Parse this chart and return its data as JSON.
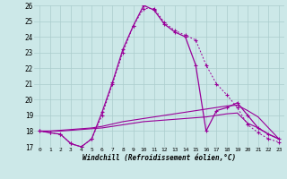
{
  "xlabel": "Windchill (Refroidissement éolien,°C)",
  "x": [
    0,
    1,
    2,
    3,
    4,
    5,
    6,
    7,
    8,
    9,
    10,
    11,
    12,
    13,
    14,
    15,
    16,
    17,
    18,
    19,
    20,
    21,
    22,
    23
  ],
  "line1": [
    18.0,
    17.9,
    17.8,
    17.2,
    17.0,
    17.5,
    19.2,
    21.1,
    23.2,
    24.7,
    26.0,
    25.7,
    24.8,
    24.3,
    24.0,
    22.2,
    18.0,
    19.3,
    19.5,
    19.8,
    19.0,
    18.2,
    17.8,
    17.5
  ],
  "line2": [
    18.0,
    17.9,
    17.8,
    17.2,
    17.0,
    17.5,
    19.0,
    21.0,
    23.0,
    24.7,
    25.8,
    25.8,
    24.9,
    24.4,
    24.1,
    23.8,
    22.2,
    21.0,
    20.3,
    19.5,
    18.4,
    17.9,
    17.5,
    17.3
  ],
  "line3": [
    18.0,
    18.0,
    18.0,
    18.05,
    18.1,
    18.15,
    18.2,
    18.3,
    18.4,
    18.5,
    18.6,
    18.65,
    18.7,
    18.75,
    18.8,
    18.85,
    18.9,
    19.0,
    19.1,
    19.15,
    18.5,
    18.2,
    17.8,
    17.5
  ],
  "line4": [
    18.0,
    18.0,
    18.05,
    18.1,
    18.15,
    18.2,
    18.3,
    18.45,
    18.6,
    18.7,
    18.8,
    18.9,
    19.0,
    19.1,
    19.2,
    19.3,
    19.4,
    19.5,
    19.6,
    19.65,
    19.3,
    18.9,
    18.2,
    17.5
  ],
  "line_color": "#990099",
  "bg_color": "#cce8e8",
  "grid_color": "#aacccc",
  "ylim": [
    17,
    26
  ],
  "yticks": [
    17,
    18,
    19,
    20,
    21,
    22,
    23,
    24,
    25,
    26
  ],
  "xticks": [
    0,
    1,
    2,
    3,
    4,
    5,
    6,
    7,
    8,
    9,
    10,
    11,
    12,
    13,
    14,
    15,
    16,
    17,
    18,
    19,
    20,
    21,
    22,
    23
  ]
}
